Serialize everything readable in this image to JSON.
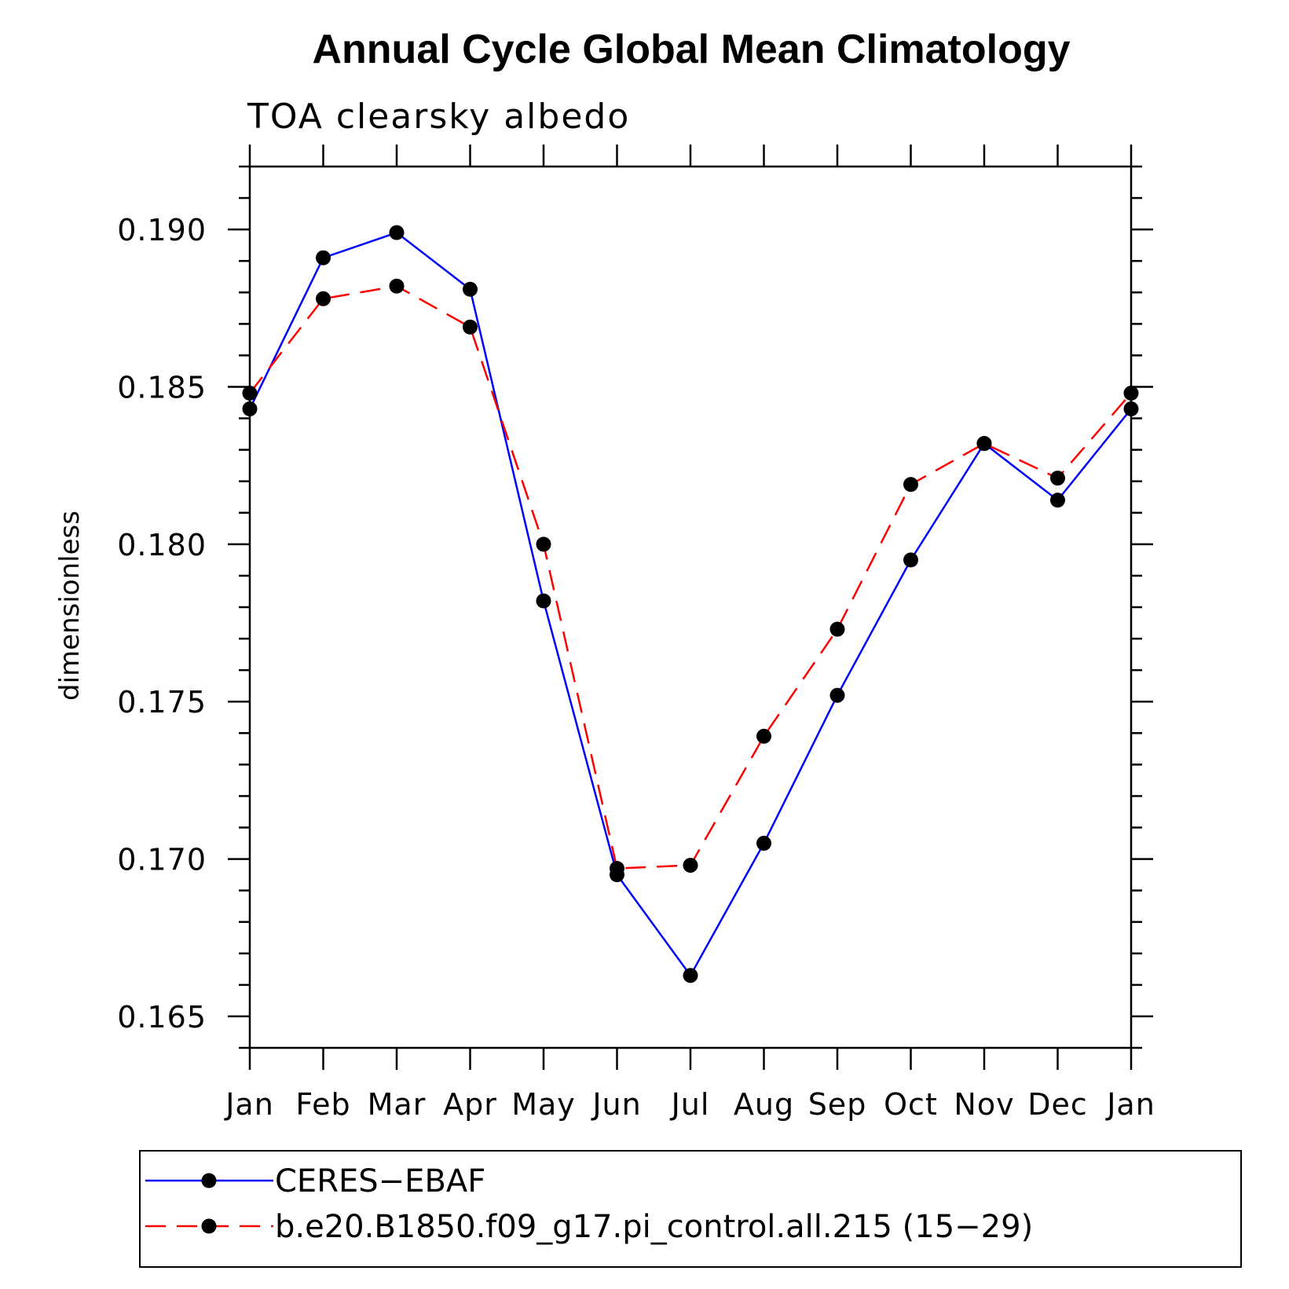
{
  "chart_data": {
    "type": "line",
    "title": "Annual Cycle Global Mean Climatology",
    "subtitle": "TOA clearsky albedo",
    "xlabel": "",
    "ylabel": "dimensionless",
    "categories": [
      "Jan",
      "Feb",
      "Mar",
      "Apr",
      "May",
      "Jun",
      "Jul",
      "Aug",
      "Sep",
      "Oct",
      "Nov",
      "Dec",
      "Jan"
    ],
    "yticks": [
      "0.165",
      "0.170",
      "0.175",
      "0.180",
      "0.185",
      "0.190"
    ],
    "ylim": [
      0.164,
      0.192
    ],
    "grid": false,
    "legend_position": "bottom",
    "series": [
      {
        "name": "CERES−EBAF",
        "color": "#0000ff",
        "dash": "solid",
        "marker": "circle",
        "values": [
          0.1843,
          0.1891,
          0.1899,
          0.1881,
          0.1782,
          0.1695,
          0.1663,
          0.1705,
          0.1752,
          0.1795,
          0.1832,
          0.1814,
          0.1843
        ]
      },
      {
        "name": "b.e20.B1850.f09_g17.pi_control.all.215 (15−29)",
        "color": "#ff0000",
        "dash": "dashed",
        "marker": "circle",
        "values": [
          0.1848,
          0.1878,
          0.1882,
          0.1869,
          0.18,
          0.1697,
          0.1698,
          0.1739,
          0.1773,
          0.1819,
          0.1832,
          0.1821,
          0.1848
        ]
      }
    ]
  }
}
